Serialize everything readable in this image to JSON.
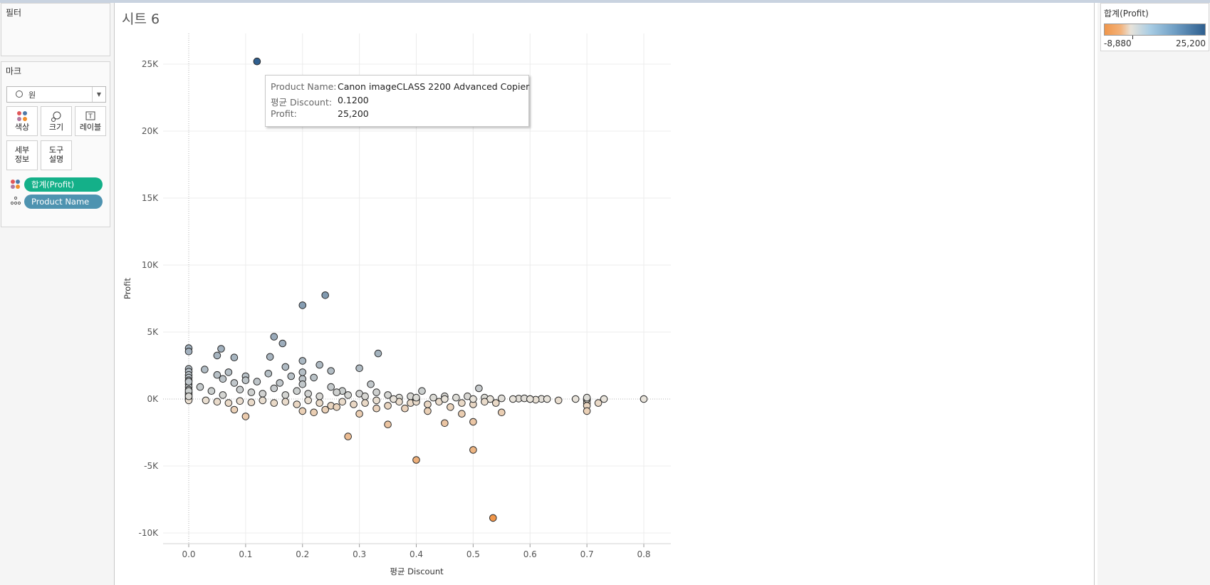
{
  "sidebar": {
    "filters_title": "필터",
    "marks_title": "마크",
    "mark_type": "원",
    "mark_buttons": {
      "color": "색상",
      "size": "크기",
      "label": "레이블",
      "detail": [
        "세부",
        "정보"
      ],
      "tooltip": [
        "도구",
        "설명"
      ]
    },
    "pills": {
      "color_field": "합계(Profit)",
      "detail_field": "Product Name"
    }
  },
  "sheet": {
    "title": "시트 6"
  },
  "legend": {
    "title": "합계(Profit)",
    "min": "-8,880",
    "max": "25,200",
    "colors": {
      "negative": "#f0964a",
      "neutral": "#e8e3da",
      "positive": "#2f5f8f"
    }
  },
  "tooltip": {
    "product_name_label": "Product Name:",
    "product_name_value": "Canon imageCLASS 2200 Advanced Copier",
    "discount_label": "평균 Discount:",
    "discount_value": "0.1200",
    "profit_label": "Profit:",
    "profit_value": "25,200"
  },
  "colors": {
    "pill_green": "#14b089",
    "pill_blue": "#4e93b0"
  },
  "chart_data": {
    "type": "scatter",
    "title": "시트 6",
    "xlabel": "평균 Discount",
    "ylabel": "Profit",
    "xlim": [
      -0.045,
      0.85
    ],
    "ylim": [
      -10500,
      26600
    ],
    "x_ticks": [
      0.0,
      0.1,
      0.2,
      0.3,
      0.4,
      0.5,
      0.6,
      0.7,
      0.8
    ],
    "x_tick_labels": [
      "0.0",
      "0.1",
      "0.2",
      "0.3",
      "0.4",
      "0.5",
      "0.6",
      "0.7",
      "0.8"
    ],
    "y_ticks": [
      25000,
      20000,
      15000,
      10000,
      5000,
      0,
      -5000,
      -10000
    ],
    "y_tick_labels": [
      "25K",
      "20K",
      "15K",
      "10K",
      "5K",
      "0K",
      "-5K",
      "-10K"
    ],
    "color_range": [
      -8880,
      25200
    ],
    "grid": true,
    "points": [
      [
        0.12,
        25200
      ],
      [
        0.24,
        7750
      ],
      [
        0.2,
        7000
      ],
      [
        0.15,
        4650
      ],
      [
        0.165,
        4150
      ],
      [
        0.0,
        3800
      ],
      [
        0.0,
        3550
      ],
      [
        0.057,
        3750
      ],
      [
        0.05,
        3250
      ],
      [
        0.08,
        3100
      ],
      [
        0.143,
        3150
      ],
      [
        0.333,
        3400
      ],
      [
        0.2,
        2850
      ],
      [
        0.23,
        2550
      ],
      [
        0.3,
        2300
      ],
      [
        0.17,
        2400
      ],
      [
        0.25,
        2100
      ],
      [
        0.028,
        2200
      ],
      [
        0.0,
        2250
      ],
      [
        0.0,
        2050
      ],
      [
        0.0,
        1800
      ],
      [
        0.0,
        1600
      ],
      [
        0.0,
        1400
      ],
      [
        0.0,
        1100
      ],
      [
        0.0,
        900
      ],
      [
        0.0,
        700
      ],
      [
        0.0,
        500
      ],
      [
        0.0,
        300
      ],
      [
        0.0,
        150
      ],
      [
        0.0,
        0
      ],
      [
        0.0,
        -100
      ],
      [
        0.0,
        400
      ],
      [
        0.0,
        1300
      ],
      [
        0.0,
        600
      ],
      [
        0.0,
        200
      ],
      [
        0.05,
        1800
      ],
      [
        0.06,
        1500
      ],
      [
        0.07,
        2000
      ],
      [
        0.08,
        1200
      ],
      [
        0.1,
        1700
      ],
      [
        0.1,
        1400
      ],
      [
        0.12,
        1300
      ],
      [
        0.14,
        1900
      ],
      [
        0.16,
        1200
      ],
      [
        0.18,
        1700
      ],
      [
        0.2,
        1500
      ],
      [
        0.2,
        2000
      ],
      [
        0.2,
        1100
      ],
      [
        0.22,
        1600
      ],
      [
        0.25,
        900
      ],
      [
        0.27,
        600
      ],
      [
        0.32,
        1100
      ],
      [
        0.02,
        900
      ],
      [
        0.04,
        600
      ],
      [
        0.06,
        300
      ],
      [
        0.09,
        700
      ],
      [
        0.11,
        500
      ],
      [
        0.13,
        400
      ],
      [
        0.15,
        800
      ],
      [
        0.17,
        300
      ],
      [
        0.19,
        600
      ],
      [
        0.21,
        400
      ],
      [
        0.23,
        200
      ],
      [
        0.26,
        500
      ],
      [
        0.28,
        300
      ],
      [
        0.3,
        400
      ],
      [
        0.31,
        200
      ],
      [
        0.33,
        500
      ],
      [
        0.35,
        300
      ],
      [
        0.37,
        100
      ],
      [
        0.39,
        200
      ],
      [
        0.41,
        600
      ],
      [
        0.43,
        100
      ],
      [
        0.45,
        200
      ],
      [
        0.47,
        100
      ],
      [
        0.49,
        200
      ],
      [
        0.52,
        100
      ],
      [
        0.55,
        50
      ],
      [
        0.58,
        30
      ],
      [
        0.62,
        10
      ],
      [
        0.65,
        -100
      ],
      [
        0.6,
        0
      ],
      [
        0.57,
        0
      ],
      [
        0.53,
        0
      ],
      [
        0.51,
        800
      ],
      [
        0.03,
        -100
      ],
      [
        0.05,
        -200
      ],
      [
        0.07,
        -300
      ],
      [
        0.09,
        -150
      ],
      [
        0.11,
        -250
      ],
      [
        0.13,
        -100
      ],
      [
        0.15,
        -300
      ],
      [
        0.17,
        -200
      ],
      [
        0.19,
        -400
      ],
      [
        0.21,
        -100
      ],
      [
        0.23,
        -300
      ],
      [
        0.25,
        -500
      ],
      [
        0.27,
        -200
      ],
      [
        0.29,
        -400
      ],
      [
        0.31,
        -300
      ],
      [
        0.33,
        -100
      ],
      [
        0.35,
        -500
      ],
      [
        0.37,
        -200
      ],
      [
        0.39,
        -300
      ],
      [
        0.42,
        -400
      ],
      [
        0.44,
        -200
      ],
      [
        0.46,
        -600
      ],
      [
        0.48,
        -300
      ],
      [
        0.5,
        -400
      ],
      [
        0.52,
        -200
      ],
      [
        0.54,
        -300
      ],
      [
        0.08,
        -800
      ],
      [
        0.1,
        -1300
      ],
      [
        0.2,
        -900
      ],
      [
        0.22,
        -1000
      ],
      [
        0.24,
        -800
      ],
      [
        0.26,
        -600
      ],
      [
        0.28,
        -2800
      ],
      [
        0.3,
        -1100
      ],
      [
        0.33,
        -700
      ],
      [
        0.35,
        -1900
      ],
      [
        0.38,
        -700
      ],
      [
        0.4,
        -4550
      ],
      [
        0.42,
        -900
      ],
      [
        0.45,
        -1800
      ],
      [
        0.48,
        -1100
      ],
      [
        0.5,
        -1700
      ],
      [
        0.5,
        -3800
      ],
      [
        0.535,
        -8880
      ],
      [
        0.55,
        -1000
      ],
      [
        0.7,
        -100
      ],
      [
        0.7,
        -300
      ],
      [
        0.7,
        -500
      ],
      [
        0.7,
        -900
      ],
      [
        0.7,
        0
      ],
      [
        0.7,
        100
      ],
      [
        0.72,
        -300
      ],
      [
        0.73,
        0
      ],
      [
        0.8,
        0
      ],
      [
        0.63,
        0
      ],
      [
        0.61,
        -50
      ],
      [
        0.59,
        50
      ],
      [
        0.68,
        0
      ],
      [
        0.4,
        0
      ],
      [
        0.4,
        -200
      ],
      [
        0.4,
        100
      ],
      [
        0.45,
        0
      ],
      [
        0.5,
        0
      ],
      [
        0.6,
        0
      ],
      [
        0.36,
        0
      ]
    ]
  }
}
